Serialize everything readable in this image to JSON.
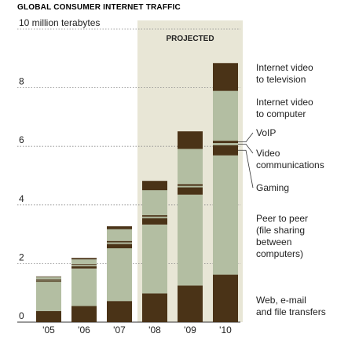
{
  "chart_data": {
    "type": "bar",
    "stacked": true,
    "title": "GLOBAL CONSUMER INTERNET TRAFFIC",
    "y_unit_label": "10 million terabytes",
    "ylim": [
      0,
      10
    ],
    "yticks": [
      {
        "value": 0,
        "label": "0"
      },
      {
        "value": 2,
        "label": "2"
      },
      {
        "value": 4,
        "label": "4"
      },
      {
        "value": 6,
        "label": "6"
      },
      {
        "value": 8,
        "label": "8"
      },
      {
        "value": 10,
        "label": "10 million terabytes"
      }
    ],
    "categories": [
      "'05",
      "'06",
      "'07",
      "'08",
      "'09",
      "'10"
    ],
    "projected": {
      "label": "PROJECTED",
      "from_index": 3,
      "to_index": 5
    },
    "grid": true,
    "legend_placement": "right",
    "series": [
      {
        "name": "Web, e-mail and file transfers",
        "label_lines": [
          "Web, e-mail",
          "and file transfers"
        ],
        "color": "#4a3317",
        "values": [
          0.38,
          0.55,
          0.72,
          0.98,
          1.25,
          1.62
        ]
      },
      {
        "name": "Peer to peer (file sharing between computers)",
        "label_lines": [
          "Peer to peer",
          "(file sharing",
          "between",
          "computers)"
        ],
        "color": "#b3bea2",
        "values": [
          1.0,
          1.28,
          1.8,
          2.35,
          3.1,
          4.07
        ]
      },
      {
        "name": "Gaming",
        "label_lines": [
          "Gaming"
        ],
        "color": "#4a3317",
        "values": [
          0.05,
          0.08,
          0.15,
          0.22,
          0.25,
          0.35
        ]
      },
      {
        "name": "Video communications",
        "label_lines": [
          "Video",
          "communications"
        ],
        "color": "#b3bea2",
        "values": [
          0.03,
          0.04,
          0.05,
          0.05,
          0.05,
          0.07
        ]
      },
      {
        "name": "VoIP",
        "label_lines": [
          "VoIP"
        ],
        "color": "#4a3317",
        "values": [
          0.02,
          0.03,
          0.05,
          0.05,
          0.06,
          0.08
        ]
      },
      {
        "name": "Internet video to computer",
        "label_lines": [
          "Internet video",
          "to computer"
        ],
        "color": "#b3bea2",
        "values": [
          0.06,
          0.16,
          0.4,
          0.85,
          1.2,
          1.7
        ]
      },
      {
        "name": "Internet video to television",
        "label_lines": [
          "Internet video",
          "to television"
        ],
        "color": "#4a3317",
        "values": [
          0.02,
          0.05,
          0.1,
          0.32,
          0.6,
          0.95
        ]
      }
    ]
  }
}
